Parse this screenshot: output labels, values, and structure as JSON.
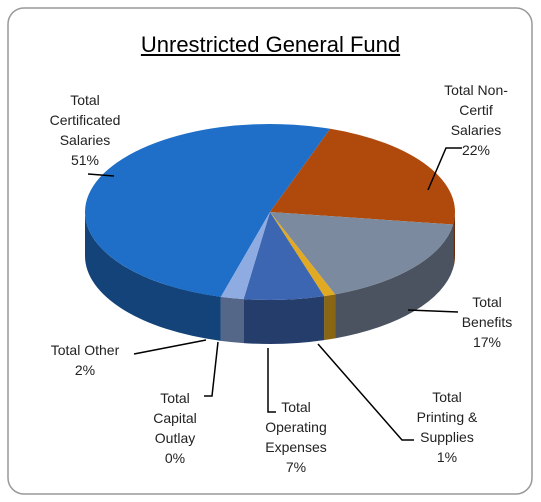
{
  "chart_data": {
    "type": "pie3d",
    "title": "Unrestricted General Fund",
    "categories": [
      "Total Certificated Salaries",
      "Total Non-Certif Salaries",
      "Total Benefits",
      "Total Printing & Supplies",
      "Total Operating Expenses",
      "Total Capital Outlay",
      "Total Other"
    ],
    "values": [
      51,
      22,
      17,
      1,
      7,
      0,
      2
    ],
    "value_labels": [
      "51%",
      "22%",
      "17%",
      "1%",
      "7%",
      "0%",
      "2%"
    ],
    "colors": [
      "#1f6fc8",
      "#b04a0c",
      "#7b8a9f",
      "#e2aa22",
      "#3c66b2",
      "#5a9a3c",
      "#8eabe2"
    ]
  }
}
